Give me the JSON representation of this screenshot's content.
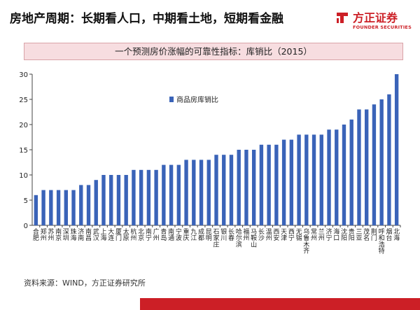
{
  "header": {
    "title": "房地产周期：长期看人口，中期看土地，短期看金融"
  },
  "logo": {
    "cn": "方正证券",
    "en": "FOUNDER SECURITIES",
    "color": "#cc1f26"
  },
  "banner": {
    "text": "一个预测房价涨幅的可靠性指标：库销比（2015）"
  },
  "source": {
    "text": "资料来源：WIND，方正证券研究所"
  },
  "chart_data": {
    "type": "bar",
    "title": "",
    "xlabel": "",
    "ylabel": "",
    "ylim": [
      0,
      30
    ],
    "yticks": [
      0,
      5,
      10,
      15,
      20,
      25,
      30
    ],
    "grid": false,
    "legend_position": "top-left",
    "bar_color": "#3a63b8",
    "categories": [
      "合肥",
      "郑州",
      "苏州",
      "南京",
      "深圳",
      "珠海",
      "济南",
      "南昌",
      "武汉",
      "上海",
      "大连",
      "厦门",
      "太原",
      "杭州",
      "北京",
      "南宁",
      "广州",
      "青岛",
      "南通",
      "宁波",
      "重庆",
      "九江",
      "成都",
      "昆明",
      "石家庄",
      "银川",
      "长春",
      "哈尔滨",
      "福州",
      "马鞍山",
      "长沙",
      "温州",
      "西安",
      "天津",
      "西宁",
      "无锡",
      "乌鲁木齐",
      "常州",
      "兰州",
      "济宁",
      "海口",
      "沈阳",
      "贵阳",
      "三亚",
      "茂名",
      "荆门",
      "呼和浩特",
      "烟台",
      "北海"
    ],
    "series": [
      {
        "name": "商品房库销比",
        "values": [
          6,
          7,
          7,
          7,
          7,
          7,
          8,
          8,
          9,
          10,
          10,
          10,
          10,
          11,
          11,
          11,
          11,
          12,
          12,
          12,
          13,
          13,
          13,
          13,
          14,
          14,
          14,
          15,
          15,
          15,
          16,
          16,
          16,
          17,
          17,
          18,
          18,
          18,
          18,
          19,
          19,
          20,
          21,
          23,
          23,
          24,
          25,
          26,
          30
        ]
      }
    ]
  }
}
